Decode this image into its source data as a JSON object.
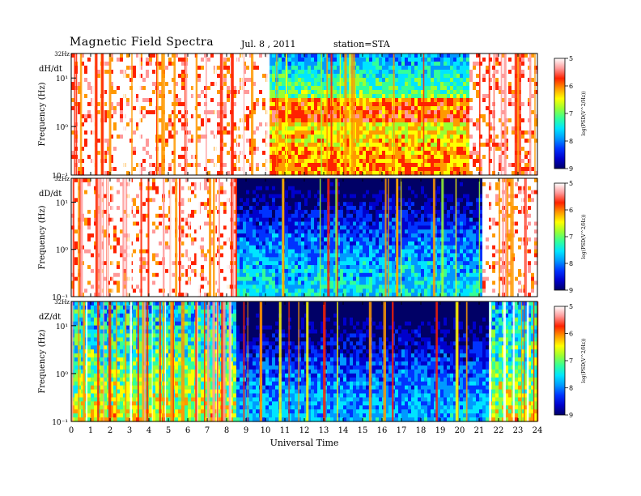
{
  "header": {
    "title": "Magnetic  Field  Spectra",
    "date": "Jul.  8  , 2011",
    "station": "station=STA"
  },
  "colors": {
    "colormap": [
      "#000066",
      "#0000cc",
      "#0033ff",
      "#0099ff",
      "#00e5ff",
      "#33ff99",
      "#99ff33",
      "#ffff00",
      "#ff9900",
      "#ff2200",
      "#ff9999",
      "#ffffff"
    ],
    "background": "#ffffff"
  },
  "chart_data": [
    {
      "type": "heatmap",
      "component": "dH/dt",
      "panel_label": "dH/dt",
      "ylabel": "Frequency  (Hz)",
      "xlabel": "",
      "y_scale": "log",
      "ylim_hz": [
        0.1,
        32
      ],
      "yticks": [
        {
          "value": 10,
          "label": "10¹"
        },
        {
          "value": 1,
          "label": "10⁰"
        },
        {
          "value": 0.1,
          "label": "10⁻¹"
        }
      ],
      "top_label": "32Hz",
      "xlim_hours": [
        0,
        24
      ],
      "colorbar": {
        "label": "log(PSD(V^2/Hz))",
        "range": [
          -9,
          -5
        ],
        "ticks": [
          -9,
          -8,
          -7,
          -6,
          -5
        ],
        "tick_labels": [
          "9",
          "8",
          "7",
          "6",
          "5"
        ]
      },
      "quiet_interval_hours": [
        10.2,
        20.5
      ],
      "dominant_log_psd_in_quiet_interval": -6.5,
      "noisy_intervals_hours": [
        [
          0,
          10.2
        ],
        [
          20.5,
          24
        ]
      ]
    },
    {
      "type": "heatmap",
      "component": "dD/dt",
      "panel_label": "dD/dt",
      "ylabel": "Frequency  (Hz)",
      "xlabel": "",
      "y_scale": "log",
      "ylim_hz": [
        0.1,
        32
      ],
      "yticks": [
        {
          "value": 10,
          "label": "10¹"
        },
        {
          "value": 1,
          "label": "10⁰"
        },
        {
          "value": 0.1,
          "label": "10⁻¹"
        }
      ],
      "top_label": "32Hz",
      "xlim_hours": [
        0,
        24
      ],
      "colorbar": {
        "label": "log(PSD(V^2/Hz))",
        "range": [
          -9,
          -5
        ],
        "ticks": [
          -9,
          -8,
          -7,
          -6,
          -5
        ],
        "tick_labels": [
          "9",
          "8",
          "7",
          "6",
          "5"
        ]
      },
      "quiet_interval_hours": [
        8.5,
        21.2
      ],
      "dominant_log_psd_in_quiet_interval": -8,
      "noisy_intervals_hours": [
        [
          0,
          8.5
        ],
        [
          21.2,
          24
        ]
      ]
    },
    {
      "type": "heatmap",
      "component": "dZ/dt",
      "panel_label": "dZ/dt",
      "ylabel": "Frequency  (Hz)",
      "xlabel": "Universal Time",
      "y_scale": "log",
      "ylim_hz": [
        0.1,
        32
      ],
      "yticks": [
        {
          "value": 10,
          "label": "10¹"
        },
        {
          "value": 1,
          "label": "10⁰"
        },
        {
          "value": 0.1,
          "label": "10⁻¹"
        }
      ],
      "top_label": "32Hz",
      "xlim_hours": [
        0,
        24
      ],
      "xticks": [
        "0",
        "1",
        "2",
        "3",
        "4",
        "5",
        "6",
        "7",
        "8",
        "9",
        "10",
        "11",
        "12",
        "13",
        "14",
        "15",
        "16",
        "17",
        "18",
        "19",
        "20",
        "21",
        "22",
        "23",
        "24"
      ],
      "colorbar": {
        "label": "log(PSD(V^2/Hz))",
        "range": [
          -9,
          -5
        ],
        "ticks": [
          -9,
          -8,
          -7,
          -6,
          -5
        ],
        "tick_labels": [
          "9",
          "8",
          "7",
          "6",
          "5"
        ]
      },
      "quiet_interval_hours": [
        8.5,
        21.5
      ],
      "dominant_log_psd_in_quiet_interval": -8.2
    }
  ]
}
